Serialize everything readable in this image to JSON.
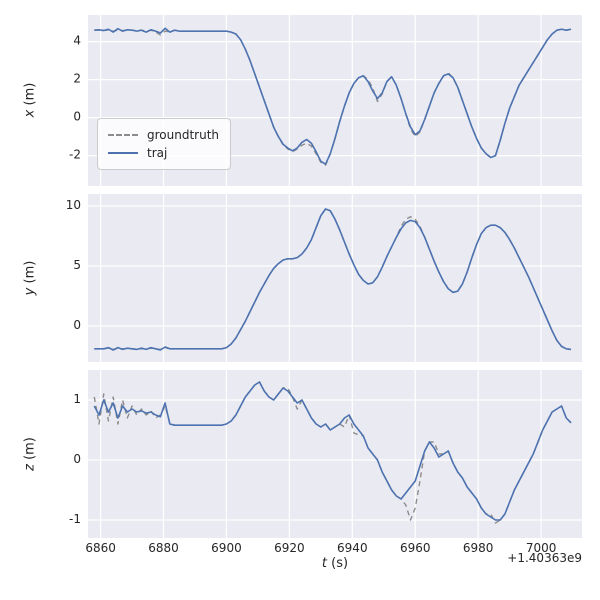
{
  "figure": {
    "background": "#ffffff",
    "axes_background": "#eaeaf2",
    "grid_color": "#ffffff",
    "tick_color": "#262626"
  },
  "legend": {
    "entries": [
      {
        "label": "groundtruth",
        "style": "dashed",
        "color": "#8c8c8c"
      },
      {
        "label": "traj",
        "style": "solid",
        "color": "#4c72b0"
      }
    ]
  },
  "chart_data": {
    "type": "line",
    "title": "",
    "xlabel_var": "t",
    "xlabel_unit": " (s)",
    "x_offset_text": "+1.40363e9",
    "xlim": [
      6856,
      7013
    ],
    "xticks": [
      6860,
      6880,
      6900,
      6920,
      6940,
      6960,
      6980,
      7000
    ],
    "grid": true,
    "legend_position": "left-center-of-first-subplot",
    "t": [
      6858,
      6859.5,
      6861,
      6862.5,
      6864,
      6865.5,
      6867,
      6868.5,
      6870,
      6871.5,
      6873,
      6874.5,
      6876,
      6877.5,
      6879,
      6880.5,
      6882,
      6883.5,
      6885,
      6886.5,
      6888,
      6889.5,
      6891,
      6892.5,
      6894,
      6895.5,
      6897,
      6898.5,
      6900,
      6901.5,
      6903,
      6904.5,
      6906,
      6907.5,
      6909,
      6910.5,
      6912,
      6913.5,
      6915,
      6916.5,
      6918,
      6919.5,
      6921,
      6922.5,
      6924,
      6925.5,
      6927,
      6928.5,
      6930,
      6931.5,
      6933,
      6934.5,
      6936,
      6937.5,
      6939,
      6940.5,
      6942,
      6943.5,
      6945,
      6946.5,
      6948,
      6949.5,
      6951,
      6952.5,
      6954,
      6955.5,
      6957,
      6958.5,
      6960,
      6961.5,
      6963,
      6964.5,
      6966,
      6967.5,
      6969,
      6970.5,
      6972,
      6973.5,
      6975,
      6976.5,
      6978,
      6979.5,
      6981,
      6982.5,
      6984,
      6985.5,
      6987,
      6988.5,
      6990,
      6991.5,
      6993,
      6994.5,
      6996,
      6997.5,
      6999,
      7000.5,
      7002,
      7003.5,
      7005,
      7006.5,
      7008,
      7009.5
    ],
    "subplots": [
      {
        "ylabel_var": "x",
        "ylabel_unit": " (m)",
        "ylim": [
          -3.6,
          5.4
        ],
        "yticks": [
          -2,
          0,
          2,
          4
        ],
        "series": [
          {
            "name": "groundtruth",
            "dash": true,
            "color": "#8c8c8c",
            "values": [
              4.6,
              4.6,
              4.6,
              4.6,
              4.55,
              4.6,
              4.58,
              4.6,
              4.6,
              4.58,
              4.6,
              4.55,
              4.6,
              4.5,
              4.35,
              4.55,
              4.52,
              4.6,
              4.55,
              4.55,
              4.55,
              4.55,
              4.55,
              4.55,
              4.55,
              4.55,
              4.55,
              4.55,
              4.55,
              4.5,
              4.4,
              4.1,
              3.6,
              3.0,
              2.3,
              1.6,
              0.9,
              0.2,
              -0.5,
              -1.0,
              -1.45,
              -1.65,
              -1.8,
              -1.65,
              -1.45,
              -1.35,
              -1.5,
              -1.9,
              -2.35,
              -2.5,
              -1.9,
              -1.1,
              -0.2,
              0.6,
              1.3,
              1.8,
              2.1,
              2.2,
              2.0,
              1.55,
              0.85,
              1.25,
              1.9,
              2.15,
              1.7,
              1.0,
              0.2,
              -0.6,
              -1.0,
              -0.75,
              -0.1,
              0.6,
              1.3,
              1.8,
              2.2,
              2.35,
              2.1,
              1.6,
              0.9,
              0.2,
              -0.5,
              -1.1,
              -1.6,
              -1.9,
              -2.1,
              -2.0,
              -1.2,
              -0.3,
              0.5,
              1.1,
              1.7,
              2.1,
              2.5,
              2.9,
              3.3,
              3.7,
              4.1,
              4.4,
              4.6,
              4.65,
              4.6,
              4.65
            ]
          },
          {
            "name": "traj",
            "dash": false,
            "color": "#4c72b0",
            "values": [
              4.6,
              4.62,
              4.58,
              4.65,
              4.5,
              4.68,
              4.55,
              4.62,
              4.6,
              4.55,
              4.6,
              4.5,
              4.62,
              4.55,
              4.45,
              4.7,
              4.5,
              4.6,
              4.55,
              4.55,
              4.55,
              4.55,
              4.55,
              4.55,
              4.55,
              4.55,
              4.55,
              4.55,
              4.55,
              4.5,
              4.4,
              4.1,
              3.6,
              3.0,
              2.3,
              1.6,
              0.9,
              0.2,
              -0.5,
              -1.0,
              -1.4,
              -1.6,
              -1.75,
              -1.6,
              -1.3,
              -1.15,
              -1.35,
              -1.8,
              -2.3,
              -2.45,
              -1.9,
              -1.1,
              -0.2,
              0.6,
              1.3,
              1.8,
              2.1,
              2.2,
              1.9,
              1.4,
              1.0,
              1.3,
              1.9,
              2.15,
              1.7,
              1.0,
              0.2,
              -0.5,
              -0.9,
              -0.7,
              -0.1,
              0.6,
              1.3,
              1.8,
              2.2,
              2.3,
              2.1,
              1.6,
              0.9,
              0.2,
              -0.5,
              -1.1,
              -1.6,
              -1.9,
              -2.1,
              -2.0,
              -1.2,
              -0.3,
              0.5,
              1.1,
              1.7,
              2.1,
              2.5,
              2.9,
              3.3,
              3.7,
              4.1,
              4.4,
              4.6,
              4.65,
              4.6,
              4.65
            ]
          }
        ]
      },
      {
        "ylabel_var": "y",
        "ylabel_unit": " (m)",
        "ylim": [
          -3.0,
          11.0
        ],
        "yticks": [
          0,
          5,
          10
        ],
        "series": [
          {
            "name": "groundtruth",
            "dash": true,
            "color": "#8c8c8c",
            "values": [
              -1.9,
              -1.9,
              -1.9,
              -1.85,
              -1.95,
              -1.85,
              -1.9,
              -1.9,
              -1.9,
              -1.9,
              -1.9,
              -1.9,
              -1.85,
              -1.9,
              -1.95,
              -1.8,
              -1.9,
              -1.9,
              -1.9,
              -1.9,
              -1.9,
              -1.9,
              -1.9,
              -1.9,
              -1.9,
              -1.9,
              -1.9,
              -1.9,
              -1.8,
              -1.5,
              -1.0,
              -0.3,
              0.4,
              1.2,
              2.0,
              2.8,
              3.5,
              4.2,
              4.8,
              5.2,
              5.5,
              5.6,
              5.6,
              5.7,
              6.0,
              6.5,
              7.2,
              8.2,
              9.2,
              9.75,
              9.6,
              8.9,
              8.0,
              7.0,
              6.0,
              5.1,
              4.3,
              3.8,
              3.5,
              3.6,
              4.1,
              4.9,
              5.8,
              6.6,
              7.4,
              8.3,
              8.9,
              9.1,
              8.9,
              8.3,
              7.4,
              6.4,
              5.4,
              4.5,
              3.7,
              3.1,
              2.8,
              2.9,
              3.5,
              4.5,
              5.7,
              6.8,
              7.7,
              8.2,
              8.4,
              8.4,
              8.2,
              7.8,
              7.2,
              6.5,
              5.7,
              4.9,
              4.1,
              3.2,
              2.3,
              1.4,
              0.5,
              -0.4,
              -1.2,
              -1.7,
              -1.9,
              -1.95
            ]
          },
          {
            "name": "traj",
            "dash": false,
            "color": "#4c72b0",
            "values": [
              -1.9,
              -1.9,
              -1.9,
              -1.8,
              -2.0,
              -1.8,
              -1.95,
              -1.85,
              -1.9,
              -1.95,
              -1.85,
              -1.95,
              -1.8,
              -1.9,
              -2.0,
              -1.75,
              -1.9,
              -1.9,
              -1.9,
              -1.9,
              -1.9,
              -1.9,
              -1.9,
              -1.9,
              -1.9,
              -1.9,
              -1.9,
              -1.9,
              -1.8,
              -1.5,
              -1.0,
              -0.3,
              0.4,
              1.2,
              2.0,
              2.8,
              3.5,
              4.2,
              4.8,
              5.2,
              5.5,
              5.6,
              5.6,
              5.7,
              6.0,
              6.5,
              7.2,
              8.2,
              9.2,
              9.75,
              9.6,
              8.9,
              8.0,
              7.0,
              6.0,
              5.1,
              4.3,
              3.8,
              3.5,
              3.6,
              4.1,
              4.9,
              5.8,
              6.6,
              7.4,
              8.1,
              8.6,
              8.8,
              8.7,
              8.2,
              7.4,
              6.4,
              5.4,
              4.5,
              3.7,
              3.1,
              2.8,
              2.9,
              3.5,
              4.5,
              5.7,
              6.8,
              7.7,
              8.2,
              8.4,
              8.4,
              8.2,
              7.8,
              7.2,
              6.5,
              5.7,
              4.9,
              4.1,
              3.2,
              2.3,
              1.4,
              0.5,
              -0.4,
              -1.2,
              -1.7,
              -1.9,
              -1.95
            ]
          }
        ]
      },
      {
        "ylabel_var": "z",
        "ylabel_unit": " (m)",
        "ylim": [
          -1.3,
          1.5
        ],
        "yticks": [
          -1,
          0,
          1
        ],
        "series": [
          {
            "name": "groundtruth",
            "dash": true,
            "color": "#8c8c8c",
            "values": [
              1.05,
              0.6,
              1.1,
              0.65,
              1.05,
              0.6,
              1.0,
              0.7,
              0.9,
              0.75,
              0.85,
              0.75,
              0.82,
              0.7,
              0.75,
              0.9,
              0.62,
              0.58,
              0.58,
              0.58,
              0.58,
              0.58,
              0.58,
              0.58,
              0.58,
              0.58,
              0.58,
              0.58,
              0.6,
              0.65,
              0.75,
              0.9,
              1.05,
              1.15,
              1.25,
              1.3,
              1.15,
              1.05,
              1.0,
              1.1,
              1.2,
              1.2,
              1.05,
              0.85,
              1.0,
              0.85,
              0.7,
              0.6,
              0.55,
              0.6,
              0.5,
              0.55,
              0.6,
              0.55,
              0.75,
              0.45,
              0.42,
              0.4,
              0.2,
              0.1,
              0.0,
              -0.2,
              -0.35,
              -0.5,
              -0.6,
              -0.65,
              -0.75,
              -1.0,
              -0.8,
              -0.35,
              0.15,
              0.3,
              0.3,
              0.1,
              0.1,
              0.15,
              -0.05,
              -0.2,
              -0.3,
              -0.45,
              -0.55,
              -0.65,
              -0.8,
              -0.9,
              -0.9,
              -1.05,
              -1.0,
              -0.9,
              -0.7,
              -0.5,
              -0.35,
              -0.2,
              -0.05,
              0.1,
              0.3,
              0.5,
              0.65,
              0.8,
              0.85,
              0.9,
              0.7,
              0.62
            ]
          },
          {
            "name": "traj",
            "dash": false,
            "color": "#4c72b0",
            "values": [
              0.9,
              0.75,
              1.0,
              0.8,
              0.95,
              0.7,
              0.9,
              0.8,
              0.85,
              0.8,
              0.82,
              0.78,
              0.8,
              0.75,
              0.72,
              0.95,
              0.6,
              0.58,
              0.58,
              0.58,
              0.58,
              0.58,
              0.58,
              0.58,
              0.58,
              0.58,
              0.58,
              0.58,
              0.6,
              0.65,
              0.75,
              0.9,
              1.05,
              1.15,
              1.25,
              1.3,
              1.15,
              1.05,
              1.0,
              1.1,
              1.2,
              1.15,
              1.05,
              0.95,
              1.0,
              0.85,
              0.7,
              0.6,
              0.55,
              0.6,
              0.5,
              0.55,
              0.6,
              0.7,
              0.75,
              0.6,
              0.5,
              0.4,
              0.2,
              0.1,
              0.0,
              -0.2,
              -0.35,
              -0.5,
              -0.6,
              -0.65,
              -0.55,
              -0.45,
              -0.35,
              -0.1,
              0.15,
              0.3,
              0.2,
              0.05,
              0.1,
              0.15,
              -0.05,
              -0.2,
              -0.3,
              -0.45,
              -0.55,
              -0.65,
              -0.8,
              -0.9,
              -0.95,
              -1.0,
              -1.0,
              -0.9,
              -0.7,
              -0.5,
              -0.35,
              -0.2,
              -0.05,
              0.1,
              0.3,
              0.5,
              0.65,
              0.8,
              0.85,
              0.9,
              0.7,
              0.62
            ]
          }
        ]
      }
    ]
  }
}
